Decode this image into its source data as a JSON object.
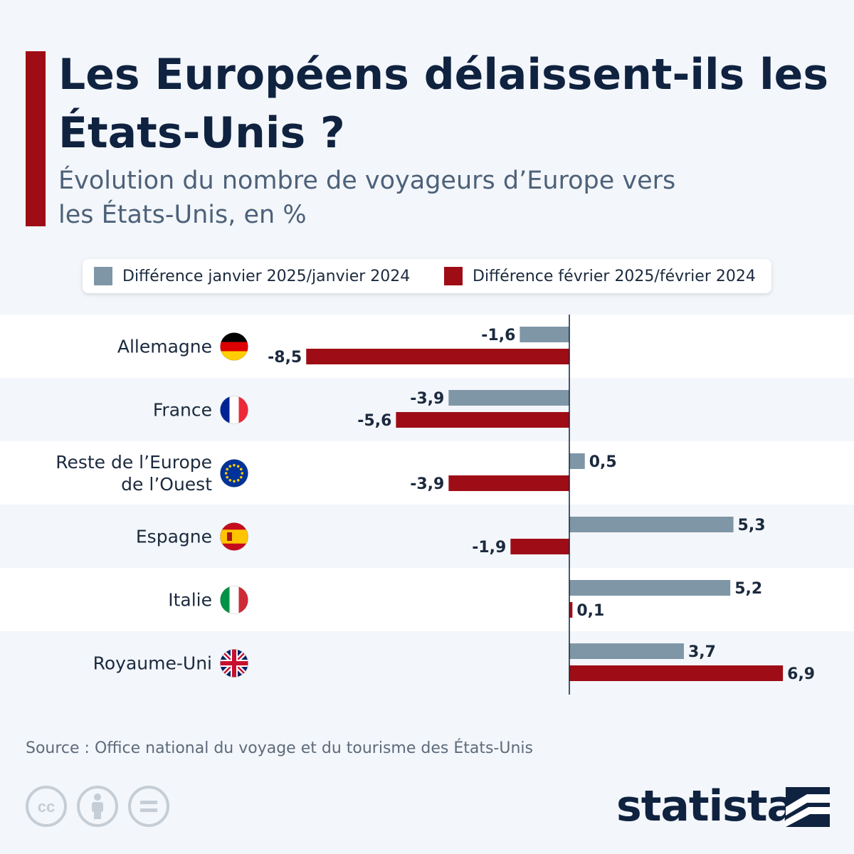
{
  "header": {
    "title": "Les Européens délaissent-ils les États-Unis ?",
    "subtitle": "Évolution du nombre de voyageurs d’Europe vers les États-Unis, en %"
  },
  "legend": {
    "jan_label": "Différence janvier 2025/janvier 2024",
    "feb_label": "Différence février 2025/février 2024"
  },
  "colors": {
    "accent": "#9e0d16",
    "january": "#7f96a6",
    "february": "#9e0d16",
    "title": "#0f2240",
    "row_alt": "#f3f6fa"
  },
  "chart_data": {
    "type": "bar",
    "orientation": "horizontal",
    "categories": [
      "Allemagne",
      "France",
      "Reste de l’Europe de l’Ouest",
      "Espagne",
      "Italie",
      "Royaume-Uni"
    ],
    "category_lines": [
      [
        "Allemagne"
      ],
      [
        "France"
      ],
      [
        "Reste de l’Europe",
        "de l’Ouest"
      ],
      [
        "Espagne"
      ],
      [
        "Italie"
      ],
      [
        "Royaume-Uni"
      ]
    ],
    "flags": [
      "germany-flag",
      "france-flag",
      "eu-flag",
      "spain-flag",
      "italy-flag",
      "uk-flag"
    ],
    "series": [
      {
        "name": "Différence janvier 2025/janvier 2024",
        "values": [
          -1.6,
          -3.9,
          0.5,
          5.3,
          5.2,
          3.7
        ],
        "labels": [
          "-1,6",
          "-3,9",
          "0,5",
          "5,3",
          "5,2",
          "3,7"
        ]
      },
      {
        "name": "Différence février 2025/février 2024",
        "values": [
          -8.5,
          -5.6,
          -3.9,
          -1.9,
          0.1,
          6.9
        ],
        "labels": [
          "-8,5",
          "-5,6",
          "-3,9",
          "-1,9",
          "0,1",
          "6,9"
        ]
      }
    ],
    "xlim": [
      -9,
      8
    ],
    "grid": false,
    "legend_position": "top"
  },
  "footer": {
    "source": "Source : Office national du voyage et du tourisme des États-Unis",
    "brand": "statista",
    "license_icons": [
      "cc-icon",
      "attribution-icon",
      "no-derivatives-icon"
    ]
  }
}
